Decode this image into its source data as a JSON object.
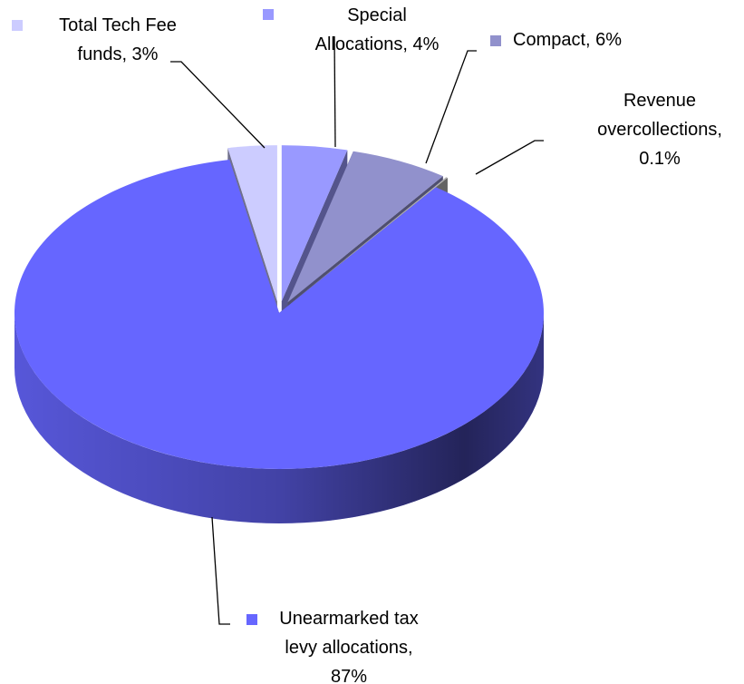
{
  "chart_data": {
    "type": "pie",
    "labels": [
      "Special Allocations, 4%",
      "Compact, 6%",
      "Revenue overcollections, 0.1%",
      "Unearmarked tax levy allocations, 87%",
      "Total Tech Fee funds, 3%"
    ],
    "values": [
      4,
      6,
      0.1,
      87,
      3
    ],
    "colors": [
      "#9999ff",
      "#9191cc",
      "#b4b4b4",
      "#6666ff",
      "#ccccff"
    ]
  }
}
